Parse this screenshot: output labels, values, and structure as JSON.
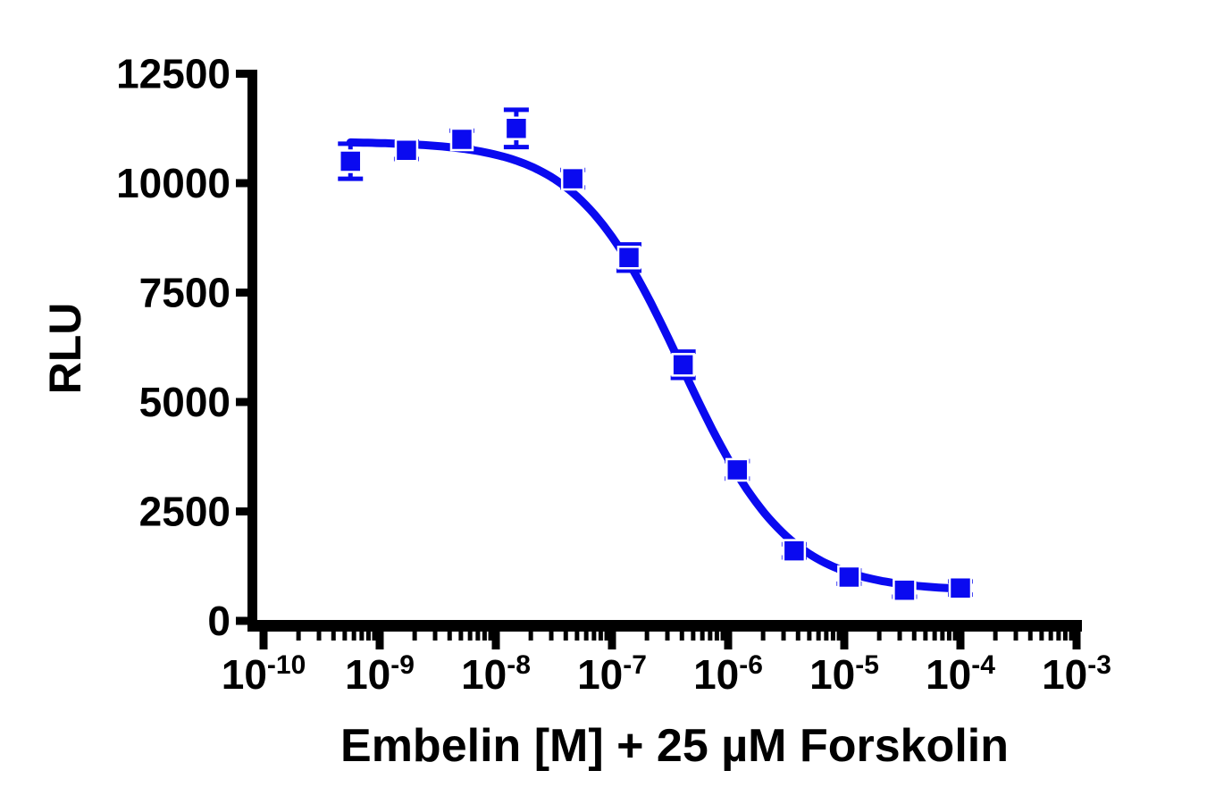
{
  "figure": {
    "background_color": "#ffffff",
    "axis_color": "#000000",
    "data_color": "#0a0af0"
  },
  "chart_data": {
    "type": "scatter",
    "subtype": "dose-response-inhibition-curve",
    "title": "",
    "xlabel": "Embelin [M] + 25 µM Forskolin",
    "ylabel": "RLU",
    "x_scale": "log10",
    "grid": false,
    "legend": null,
    "x_axis": {
      "tick_label_base": "10",
      "tick_exponents": [
        -10,
        -9,
        -8,
        -7,
        -6,
        -5,
        -4,
        -3
      ],
      "range_exponents": [
        -10,
        -3
      ],
      "minor_ticks_mantissas": [
        2,
        3,
        4,
        5,
        6,
        7,
        8,
        9
      ]
    },
    "y_axis": {
      "ticks": [
        0,
        2500,
        5000,
        7500,
        10000,
        12500
      ],
      "range": [
        0,
        12500
      ]
    },
    "series": [
      {
        "name": "Embelin + 25 µM Forskolin",
        "marker": "filled-square",
        "color": "#0a0af0",
        "x_conc_M": [
          5.6e-10,
          1.7e-09,
          5.1e-09,
          1.5e-08,
          4.6e-08,
          1.4e-07,
          4.1e-07,
          1.2e-06,
          3.7e-06,
          1.1e-05,
          3.3e-05,
          0.0001
        ],
        "y_rlu": [
          10500,
          10750,
          11000,
          11250,
          10100,
          8300,
          5850,
          3450,
          1600,
          1000,
          700,
          750
        ],
        "y_err": [
          400,
          200,
          200,
          425,
          200,
          300,
          300,
          200,
          150,
          150,
          150,
          150
        ],
        "fit_curve": {
          "model": "four-parameter-logistic",
          "top": 10950,
          "bottom": 680,
          "logEC50": -6.4,
          "hill": 0.95
        }
      }
    ]
  }
}
